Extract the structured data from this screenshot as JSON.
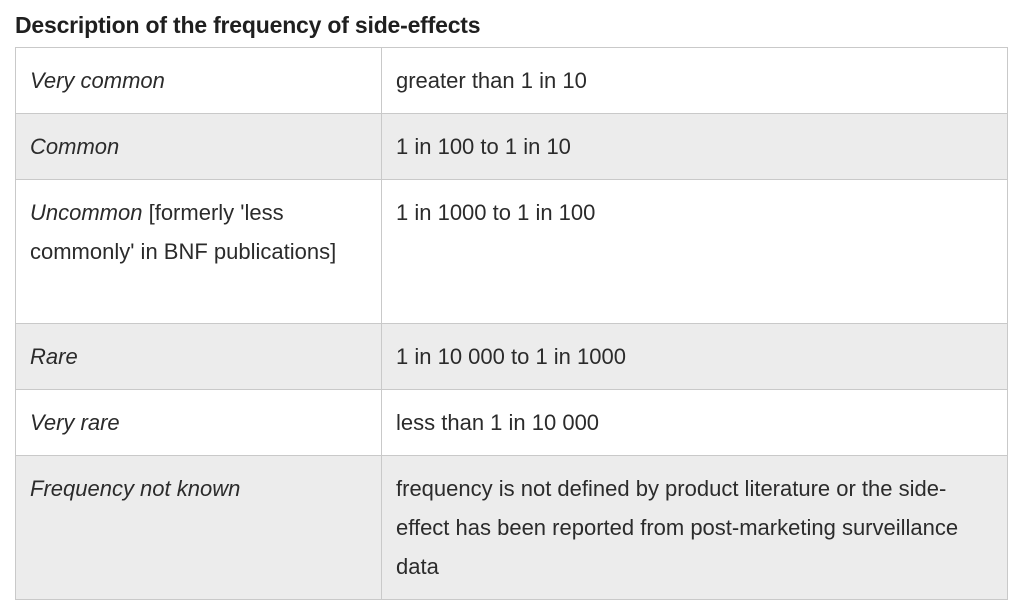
{
  "title": "Description of the frequency of side-effects",
  "rows": [
    {
      "term": "Very common",
      "term_extra": "",
      "definition": "greater than 1 in 10"
    },
    {
      "term": "Common",
      "term_extra": "",
      "definition": "1 in 100 to 1 in 10"
    },
    {
      "term": "Uncommon",
      "term_extra": " [formerly 'less commonly' in BNF publications]",
      "definition": "1 in 1000 to 1 in 100"
    },
    {
      "term": "Rare",
      "term_extra": "",
      "definition": "1 in 10 000 to 1 in 1000"
    },
    {
      "term": "Very rare",
      "term_extra": "",
      "definition": "less than 1 in 10 000"
    },
    {
      "term": "Frequency not known",
      "term_extra": "",
      "definition": "frequency is not defined by product literature or the side-effect has been reported from post-marketing surveillance data"
    }
  ]
}
